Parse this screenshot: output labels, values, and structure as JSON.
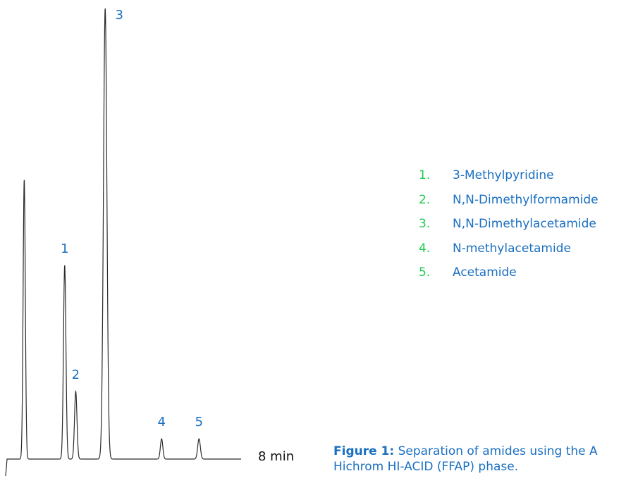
{
  "colors": {
    "line": "#2b2b2b",
    "peak_label": "#1a6fc0",
    "legend_number": "#22cc55",
    "legend_text": "#1a6fc0",
    "caption": "#1a6fc0"
  },
  "chart_data": {
    "type": "line",
    "title": "",
    "xlabel": "",
    "ylabel": "",
    "x_end_label": "8 min",
    "peaks": [
      {
        "label": "",
        "time": 0.28,
        "height": 0.62,
        "width": 0.018
      },
      {
        "label": "1",
        "time": 0.94,
        "height": 0.43,
        "width": 0.02
      },
      {
        "label": "2",
        "time": 1.12,
        "height": 0.15,
        "width": 0.02
      },
      {
        "label": "3",
        "time": 1.6,
        "height": 1.0,
        "width": 0.028
      },
      {
        "label": "4",
        "time": 2.52,
        "height": 0.045,
        "width": 0.02
      },
      {
        "label": "5",
        "time": 3.13,
        "height": 0.045,
        "width": 0.022
      }
    ],
    "legend": [
      {
        "number": "1.",
        "name": "3-Methylpyridine"
      },
      {
        "number": "2.",
        "name": "N,N-Dimethylformamide"
      },
      {
        "number": "3.",
        "name": "N,N-Dimethylacetamide"
      },
      {
        "number": "4.",
        "name": "N-methylacetamide"
      },
      {
        "number": "5.",
        "name": "Acetamide"
      }
    ]
  },
  "caption": {
    "bold": "Figure 1:",
    "line1": " Separation of amides using the A",
    "line2": "Hichrom HI-ACID (FFAP) phase."
  }
}
